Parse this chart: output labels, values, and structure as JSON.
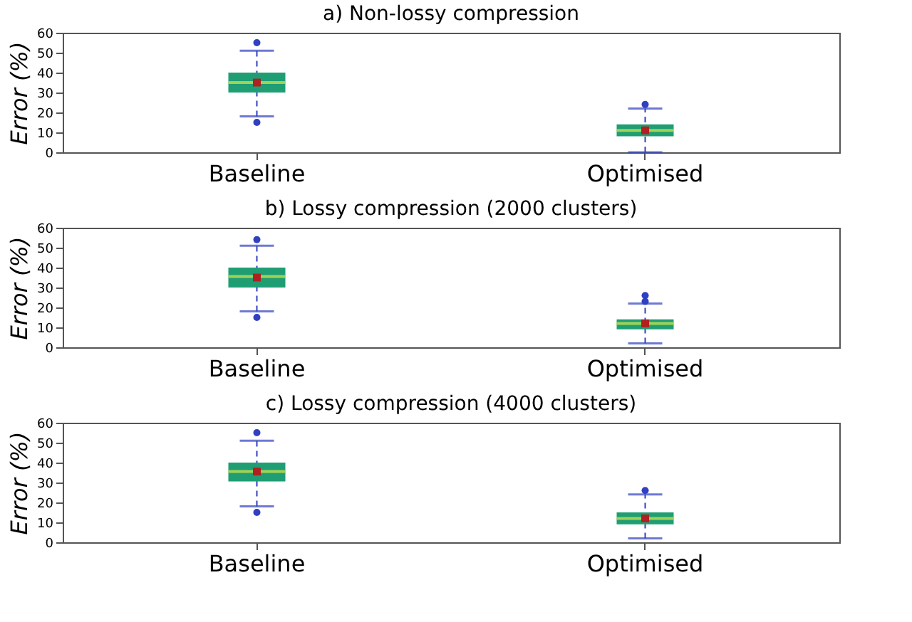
{
  "chart_data": [
    {
      "type": "box",
      "title": "a) Non-lossy compression",
      "ylabel": "Error (%)",
      "categories": [
        "Baseline",
        "Optimised"
      ],
      "ylim": [
        0,
        60
      ],
      "yticks": [
        0,
        10,
        20,
        30,
        40,
        50,
        60
      ],
      "grid": false,
      "color": "#1f9e74",
      "boxes": [
        {
          "low": 18,
          "q1": 30,
          "median": 35,
          "q3": 40,
          "high": 51,
          "mean": 35,
          "outliers": [
            15,
            55
          ]
        },
        {
          "low": 0,
          "q1": 8,
          "median": 11,
          "q3": 14,
          "high": 22,
          "mean": 11,
          "outliers": [
            24
          ]
        }
      ]
    },
    {
      "type": "box",
      "title": "b) Lossy compression (2000 clusters)",
      "ylabel": "Error (%)",
      "categories": [
        "Baseline",
        "Optimised"
      ],
      "ylim": [
        0,
        60
      ],
      "yticks": [
        0,
        10,
        20,
        30,
        40,
        50,
        60
      ],
      "grid": false,
      "color": "#1f9e74",
      "boxes": [
        {
          "low": 18,
          "q1": 30,
          "median": 35.5,
          "q3": 40,
          "high": 51,
          "mean": 35,
          "outliers": [
            15,
            54
          ]
        },
        {
          "low": 2,
          "q1": 9,
          "median": 12,
          "q3": 14,
          "high": 22,
          "mean": 12,
          "outliers": [
            23,
            26
          ]
        }
      ]
    },
    {
      "type": "box",
      "title": "c) Lossy compression (4000 clusters)",
      "ylabel": "Error (%)",
      "categories": [
        "Baseline",
        "Optimised"
      ],
      "ylim": [
        0,
        60
      ],
      "yticks": [
        0,
        10,
        20,
        30,
        40,
        50,
        60
      ],
      "grid": false,
      "color": "#1f9e74",
      "boxes": [
        {
          "low": 18,
          "q1": 30.5,
          "median": 35.5,
          "q3": 40,
          "high": 51,
          "mean": 35.5,
          "outliers": [
            15,
            55
          ]
        },
        {
          "low": 2,
          "q1": 9,
          "median": 12,
          "q3": 15,
          "high": 24,
          "mean": 12,
          "outliers": [
            26
          ]
        }
      ]
    }
  ]
}
